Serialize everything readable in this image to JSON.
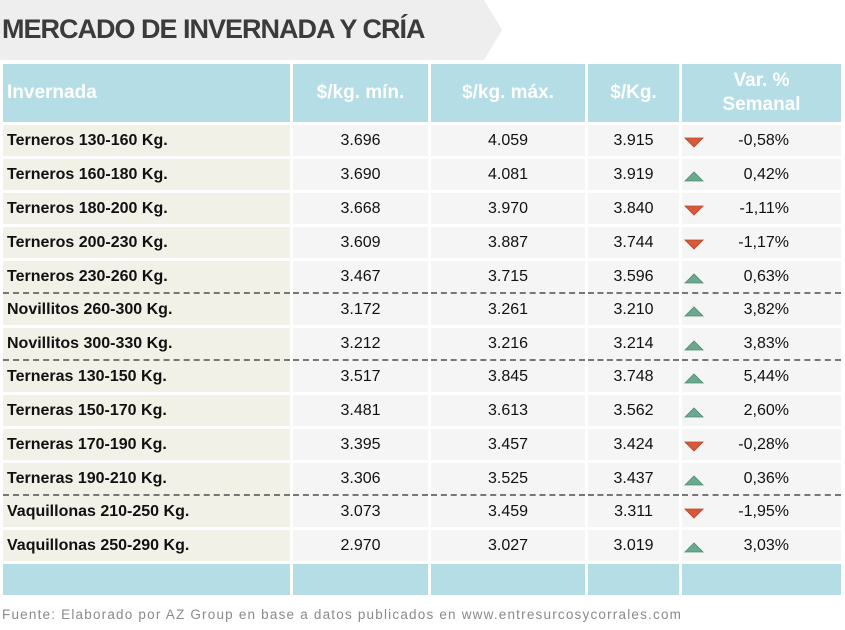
{
  "title": "MERCADO DE INVERNADA Y CRÍA",
  "table": {
    "headers": {
      "category": "Invernada",
      "min": "$/kg. mín.",
      "max": "$/kg. máx.",
      "avg": "$/Kg.",
      "var_line1": "Var. %",
      "var_line2": "Semanal"
    },
    "rows": [
      {
        "category": "Terneros 130-160 Kg.",
        "min": "3.696",
        "max": "4.059",
        "avg": "3.915",
        "var": "-0,58%",
        "trend": "down"
      },
      {
        "category": "Terneros 160-180 Kg.",
        "min": "3.690",
        "max": "4.081",
        "avg": "3.919",
        "var": "0,42%",
        "trend": "up"
      },
      {
        "category": "Terneros 180-200 Kg.",
        "min": "3.668",
        "max": "3.970",
        "avg": "3.840",
        "var": "-1,11%",
        "trend": "down"
      },
      {
        "category": "Terneros 200-230 Kg.",
        "min": "3.609",
        "max": "3.887",
        "avg": "3.744",
        "var": "-1,17%",
        "trend": "down"
      },
      {
        "category": "Terneros 230-260 Kg.",
        "min": "3.467",
        "max": "3.715",
        "avg": "3.596",
        "var": "0,63%",
        "trend": "up",
        "group_end": true
      },
      {
        "category": "Novillitos 260-300 Kg.",
        "min": "3.172",
        "max": "3.261",
        "avg": "3.210",
        "var": "3,82%",
        "trend": "up"
      },
      {
        "category": "Novillitos 300-330 Kg.",
        "min": "3.212",
        "max": "3.216",
        "avg": "3.214",
        "var": "3,83%",
        "trend": "up",
        "group_end": true
      },
      {
        "category": "Terneras 130-150 Kg.",
        "min": "3.517",
        "max": "3.845",
        "avg": "3.748",
        "var": "5,44%",
        "trend": "up"
      },
      {
        "category": "Terneras 150-170 Kg.",
        "min": "3.481",
        "max": "3.613",
        "avg": "3.562",
        "var": "2,60%",
        "trend": "up"
      },
      {
        "category": "Terneras 170-190 Kg.",
        "min": "3.395",
        "max": "3.457",
        "avg": "3.424",
        "var": "-0,28%",
        "trend": "down"
      },
      {
        "category": "Terneras 190-210 Kg.",
        "min": "3.306",
        "max": "3.525",
        "avg": "3.437",
        "var": "0,36%",
        "trend": "up",
        "group_end": true
      },
      {
        "category": "Vaquillonas 210-250 Kg.",
        "min": "3.073",
        "max": "3.459",
        "avg": "3.311",
        "var": "-1,95%",
        "trend": "down"
      },
      {
        "category": "Vaquillonas 250-290 Kg.",
        "min": "2.970",
        "max": "3.027",
        "avg": "3.019",
        "var": "3,03%",
        "trend": "up"
      }
    ]
  },
  "source": "Fuente: Elaborado por AZ Group en base a datos publicados en www.entresurcosycorrales.com",
  "colors": {
    "header_bg": "#b4dde6",
    "up_arrow": "#6aa88f",
    "down_arrow": "#d9573a",
    "title_bg": "#eeeeee"
  },
  "icons": {
    "up": "triangle-up-icon",
    "down": "triangle-down-icon"
  }
}
